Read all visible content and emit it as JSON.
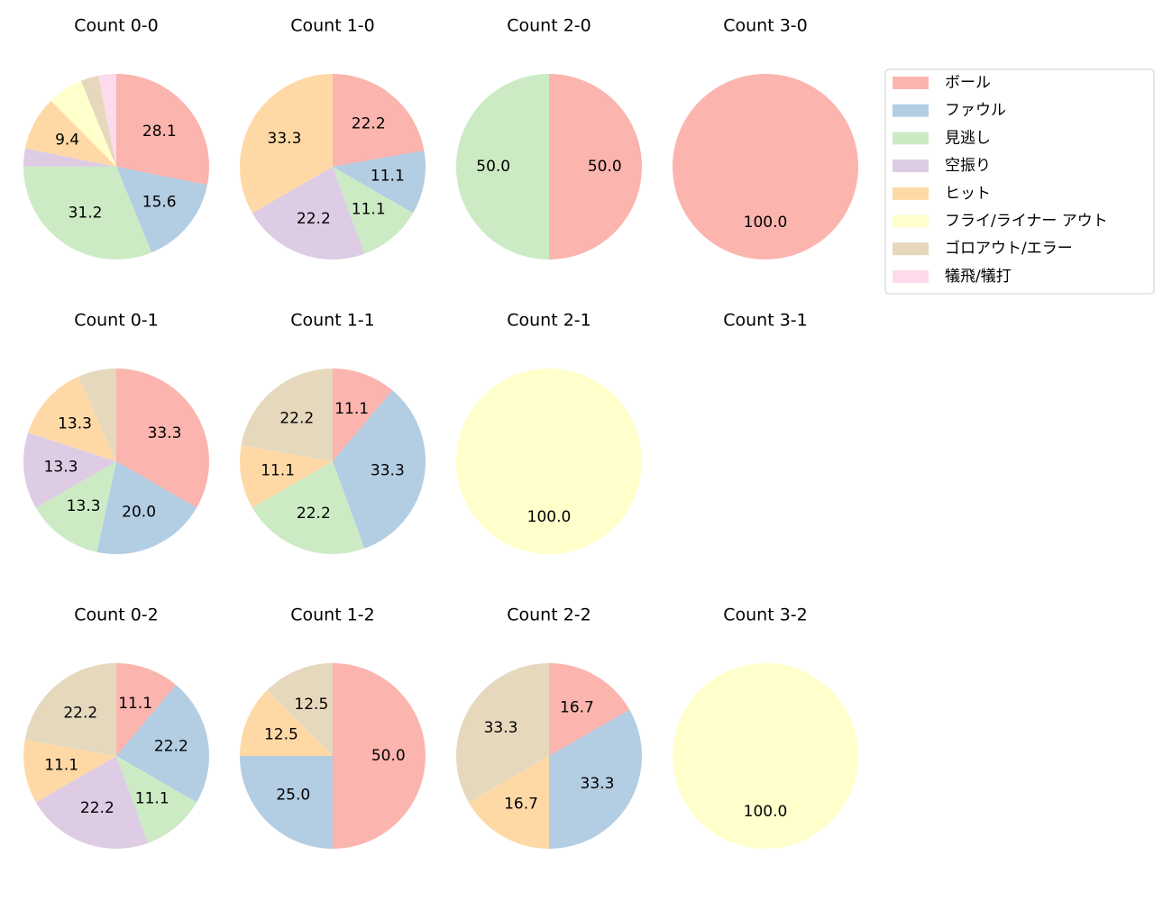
{
  "legend": {
    "position": "upper right",
    "labels": [
      "ボール",
      "ファウル",
      "見逃し",
      "空振り",
      "ヒット",
      "フライ/ライナー アウト",
      "ゴロアウト/エラー",
      "犠飛/犠打"
    ],
    "colors": [
      "#fbb4ae",
      "#b3cde3",
      "#ccebc5",
      "#decbe4",
      "#fed9a6",
      "#ffffcc",
      "#e5d8bd",
      "#fddaec"
    ]
  },
  "chart_data": [
    {
      "type": "pie",
      "title": "Count 0-0",
      "categories": [
        "ボール",
        "ファウル",
        "見逃し",
        "空振り",
        "ヒット",
        "フライ/ライナー アウト",
        "ゴロアウト/エラー",
        "犠飛/犠打"
      ],
      "colors": [
        "#fbb4ae",
        "#b3cde3",
        "#ccebc5",
        "#decbe4",
        "#fed9a6",
        "#ffffcc",
        "#e5d8bd",
        "#fddaec"
      ],
      "values": [
        28.1,
        15.6,
        31.2,
        3.1,
        9.4,
        6.2,
        3.1,
        3.1
      ],
      "value_labels": [
        "28.1",
        "15.6",
        "31.2",
        null,
        "9.4",
        null,
        null,
        null
      ]
    },
    {
      "type": "pie",
      "title": "Count 1-0",
      "categories": [
        "ボール",
        "ファウル",
        "見逃し",
        "空振り",
        "ヒット"
      ],
      "colors": [
        "#fbb4ae",
        "#b3cde3",
        "#ccebc5",
        "#decbe4",
        "#fed9a6"
      ],
      "values": [
        22.2,
        11.1,
        11.1,
        22.2,
        33.3
      ],
      "value_labels": [
        "22.2",
        "11.1",
        "11.1",
        "22.2",
        "33.3"
      ]
    },
    {
      "type": "pie",
      "title": "Count 2-0",
      "categories": [
        "ボール",
        "見逃し"
      ],
      "colors": [
        "#fbb4ae",
        "#ccebc5"
      ],
      "values": [
        50,
        50
      ],
      "value_labels": [
        "50.0",
        "50.0"
      ]
    },
    {
      "type": "pie",
      "title": "Count 3-0",
      "categories": [
        "ボール"
      ],
      "colors": [
        "#fbb4ae"
      ],
      "values": [
        100
      ],
      "value_labels": [
        "100.0"
      ]
    },
    {
      "type": "pie",
      "title": "Count 0-1",
      "categories": [
        "ボール",
        "ファウル",
        "見逃し",
        "空振り",
        "ヒット",
        "ゴロアウト/エラー"
      ],
      "colors": [
        "#fbb4ae",
        "#b3cde3",
        "#ccebc5",
        "#decbe4",
        "#fed9a6",
        "#e5d8bd"
      ],
      "values": [
        33.3,
        20.0,
        13.3,
        13.3,
        13.3,
        6.7
      ],
      "value_labels": [
        "33.3",
        "20.0",
        "13.3",
        "13.3",
        "13.3",
        null
      ]
    },
    {
      "type": "pie",
      "title": "Count 1-1",
      "categories": [
        "ボール",
        "ファウル",
        "見逃し",
        "ヒット",
        "ゴロアウト/エラー"
      ],
      "colors": [
        "#fbb4ae",
        "#b3cde3",
        "#ccebc5",
        "#fed9a6",
        "#e5d8bd"
      ],
      "values": [
        11.1,
        33.3,
        22.2,
        11.1,
        22.2
      ],
      "value_labels": [
        "11.1",
        "33.3",
        "22.2",
        "11.1",
        "22.2"
      ]
    },
    {
      "type": "pie",
      "title": "Count 2-1",
      "categories": [
        "フライ/ライナー アウト"
      ],
      "colors": [
        "#ffffcc"
      ],
      "values": [
        100
      ],
      "value_labels": [
        "100.0"
      ]
    },
    {
      "type": "pie",
      "title": "Count 3-1",
      "categories": [],
      "colors": [],
      "values": [],
      "value_labels": []
    },
    {
      "type": "pie",
      "title": "Count 0-2",
      "categories": [
        "ボール",
        "ファウル",
        "見逃し",
        "空振り",
        "ヒット",
        "ゴロアウト/エラー"
      ],
      "colors": [
        "#fbb4ae",
        "#b3cde3",
        "#ccebc5",
        "#decbe4",
        "#fed9a6",
        "#e5d8bd"
      ],
      "values": [
        11.1,
        22.2,
        11.1,
        22.2,
        11.1,
        22.2
      ],
      "value_labels": [
        "11.1",
        "22.2",
        "11.1",
        "22.2",
        "11.1",
        "22.2"
      ]
    },
    {
      "type": "pie",
      "title": "Count 1-2",
      "categories": [
        "ボール",
        "ファウル",
        "ヒット",
        "ゴロアウト/エラー"
      ],
      "colors": [
        "#fbb4ae",
        "#b3cde3",
        "#fed9a6",
        "#e5d8bd"
      ],
      "values": [
        50,
        25,
        12.5,
        12.5
      ],
      "value_labels": [
        "50.0",
        "25.0",
        "12.5",
        "12.5"
      ]
    },
    {
      "type": "pie",
      "title": "Count 2-2",
      "categories": [
        "ボール",
        "ファウル",
        "ヒット",
        "ゴロアウト/エラー"
      ],
      "colors": [
        "#fbb4ae",
        "#b3cde3",
        "#fed9a6",
        "#e5d8bd"
      ],
      "values": [
        16.7,
        33.3,
        16.7,
        33.3
      ],
      "value_labels": [
        "16.7",
        "33.3",
        "16.7",
        "33.3"
      ]
    },
    {
      "type": "pie",
      "title": "Count 3-2",
      "categories": [
        "フライ/ライナー アウト"
      ],
      "colors": [
        "#ffffcc"
      ],
      "values": [
        100
      ],
      "value_labels": [
        "100.0"
      ]
    }
  ]
}
